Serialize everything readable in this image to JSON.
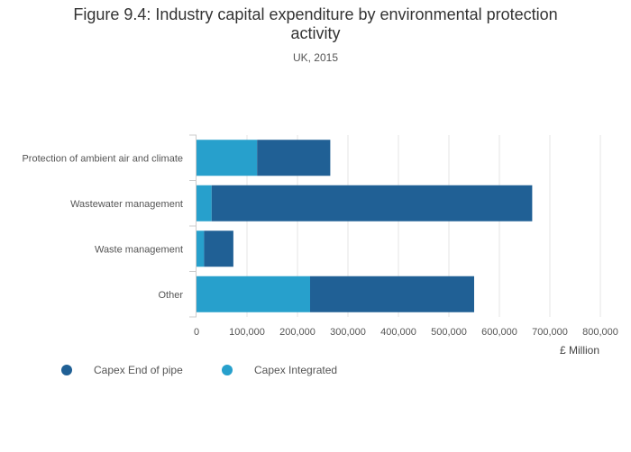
{
  "chart_data": {
    "type": "bar",
    "orientation": "horizontal",
    "stacked": true,
    "title_line1": "Figure 9.4: Industry capital expenditure by environmental protection",
    "title_line2": "activity",
    "subtitle": "UK, 2015",
    "categories": [
      "Protection of ambient air and climate",
      "Wastewater management",
      "Waste management",
      "Other"
    ],
    "series": [
      {
        "name": "Capex Integrated",
        "color": "#27a0cc",
        "values": [
          120000,
          30000,
          15000,
          225000
        ]
      },
      {
        "name": "Capex End of pipe",
        "color": "#206095",
        "values": [
          145000,
          635000,
          58000,
          325000
        ]
      }
    ],
    "xlim": [
      0,
      800000
    ],
    "xticks": [
      0,
      100000,
      200000,
      300000,
      400000,
      500000,
      600000,
      700000,
      800000
    ],
    "xtick_labels": [
      "0",
      "100,000",
      "200,000",
      "300,000",
      "400,000",
      "500,000",
      "600,000",
      "700,000",
      "800,000"
    ],
    "xlabel": "£ Million",
    "ylabel": "",
    "grid": true,
    "legend": [
      {
        "name": "Capex End of pipe",
        "color": "#206095"
      },
      {
        "name": "Capex Integrated",
        "color": "#27a0cc"
      }
    ],
    "legend_position": "bottom-left"
  }
}
